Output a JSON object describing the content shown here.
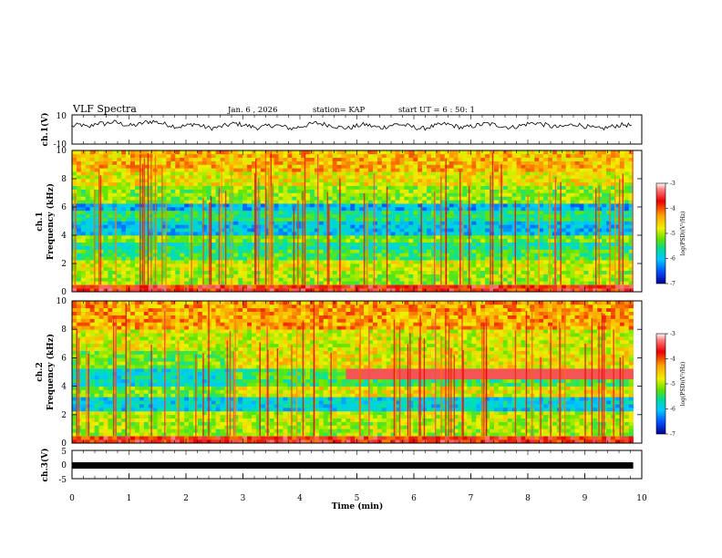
{
  "header": {
    "title": "VLF Spectra",
    "date": "Jan. 6 , 2026",
    "station": "station= KAP",
    "start_time": "start UT =  6 : 50: 1"
  },
  "chart_data": [
    {
      "type": "line",
      "name": "ch1-waveform",
      "ylabel": "ch.1(V)",
      "ylim": [
        -10,
        10
      ],
      "ytick_labels": [
        "10",
        "-10"
      ],
      "x_range_min": [
        0,
        9.85
      ],
      "values": [
        2.1,
        3.4,
        1.2,
        4.5,
        3.8,
        5.2,
        4.0,
        2.6,
        3.1,
        4.9,
        5.6,
        4.2,
        3.0,
        1.8,
        2.5,
        3.9,
        2.2,
        0.8,
        1.5,
        2.9,
        4.1,
        3.3,
        2.0,
        1.1,
        2.4,
        3.0,
        1.9,
        0.6,
        1.8,
        3.2,
        4.4,
        3.6,
        2.7,
        1.4,
        0.9,
        2.3,
        3.5,
        2.1,
        1.0,
        2.6,
        3.7,
        2.8,
        1.6,
        0.5,
        1.7,
        2.9,
        3.8,
        2.4,
        1.2,
        2.0,
        3.1,
        4.0,
        3.2,
        2.2,
        1.3,
        2.5,
        3.9,
        4.6,
        3.4,
        2.0,
        1.5,
        2.8,
        3.6,
        2.3,
        1.1,
        0.4,
        1.6,
        2.7,
        3.3,
        2.5
      ]
    },
    {
      "type": "heatmap",
      "name": "ch1-spectrogram",
      "ylabel": "ch.1\nFrequency (kHz)",
      "ylim": [
        0,
        10
      ],
      "ytick_labels": [
        "0",
        "2",
        "4",
        "6",
        "8",
        "10"
      ],
      "colorbar_range": [
        -7,
        -3
      ],
      "colorbar_ticks": [
        "-3",
        "-4",
        "-5",
        "-6",
        "-7"
      ],
      "colorbar_label": "log(PSD)(V²/Hz)",
      "band_profile_khz": [
        [
          0,
          0.4,
          -3.5
        ],
        [
          0.4,
          1.4,
          -4.8
        ],
        [
          1.4,
          2.3,
          -4.6
        ],
        [
          2.3,
          3.0,
          -5.2
        ],
        [
          3.0,
          3.6,
          -5.5
        ],
        [
          3.6,
          4.1,
          -5.0
        ],
        [
          4.1,
          5.0,
          -5.9
        ],
        [
          5.0,
          5.8,
          -5.4
        ],
        [
          5.8,
          6.3,
          -6.0
        ],
        [
          6.3,
          7.5,
          -4.9
        ],
        [
          7.5,
          8.6,
          -4.5
        ],
        [
          8.6,
          10.0,
          -4.2
        ]
      ]
    },
    {
      "type": "heatmap",
      "name": "ch2-spectrogram",
      "ylabel": "ch.2\nFrequency (kHz)",
      "ylim": [
        0,
        10
      ],
      "ytick_labels": [
        "0",
        "2",
        "4",
        "6",
        "8",
        "10"
      ],
      "colorbar_range": [
        -7,
        -3
      ],
      "colorbar_ticks": [
        "-3",
        "-4",
        "-5",
        "-6",
        "-7"
      ],
      "colorbar_label": "log(PSD)(V²/Hz)",
      "band_profile_khz": [
        [
          0,
          0.4,
          -3.5
        ],
        [
          0.4,
          1.4,
          -4.8
        ],
        [
          1.4,
          2.3,
          -4.7
        ],
        [
          2.3,
          3.3,
          -5.8
        ],
        [
          3.3,
          4.0,
          -5.0
        ],
        [
          4.0,
          5.3,
          -5.7
        ],
        [
          5.3,
          6.5,
          -5.0
        ],
        [
          6.5,
          8.0,
          -4.6
        ],
        [
          8.0,
          10.0,
          -4.1
        ]
      ]
    },
    {
      "type": "line",
      "name": "ch3-trace",
      "ylabel": "ch.3(V)",
      "ylim": [
        -5,
        5
      ],
      "ytick_labels": [
        "5",
        "0",
        "-5"
      ],
      "level_v": -0.5
    }
  ],
  "xaxis": {
    "label": "Time (min)",
    "range": [
      0,
      10
    ],
    "ticks": [
      "0",
      "1",
      "2",
      "3",
      "4",
      "5",
      "6",
      "7",
      "8",
      "9",
      "10"
    ]
  }
}
